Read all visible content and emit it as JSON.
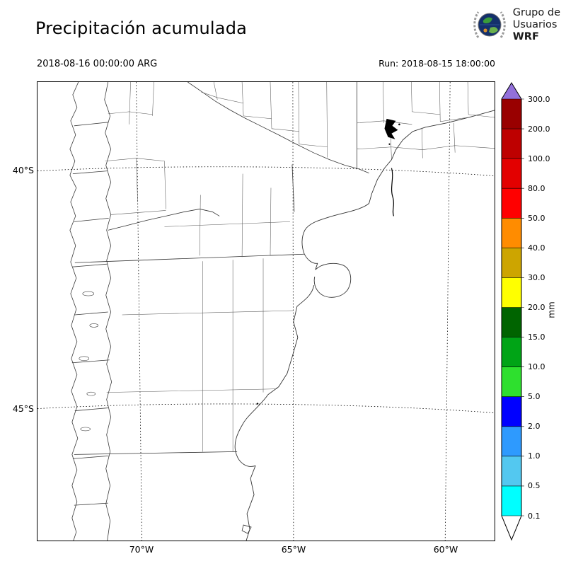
{
  "header": {
    "title": "Precipitación acumulada",
    "valid_time": "2018-08-16 00:00:00 ARG",
    "run_label": "Run: 2018-08-15 18:00:00"
  },
  "logo": {
    "line1": "Grupo de",
    "line2": "Usuarios",
    "line3": "WRF"
  },
  "map": {
    "lat_labels": [
      {
        "label": "40°S"
      },
      {
        "label": "45°S"
      }
    ],
    "lon_labels": [
      {
        "label": "70°W"
      },
      {
        "label": "65°W"
      },
      {
        "label": "60°W"
      }
    ]
  },
  "colorbar": {
    "unit": "mm",
    "tick_labels": [
      "300.0",
      "200.0",
      "100.0",
      "80.0",
      "50.0",
      "40.0",
      "30.0",
      "20.0",
      "15.0",
      "10.0",
      "5.0",
      "2.0",
      "1.0",
      "0.5",
      "0.1"
    ],
    "segment_colors_top_to_bottom": [
      "#9370DB",
      "#990000",
      "#BE0000",
      "#E30000",
      "#FF0000",
      "#FF8C00",
      "#CDA500",
      "#FFFF00",
      "#006400",
      "#00A416",
      "#2EE02E",
      "#0000FF",
      "#2E9AFE",
      "#53C8F0",
      "#00FFFF",
      "#FFFFFF"
    ]
  }
}
